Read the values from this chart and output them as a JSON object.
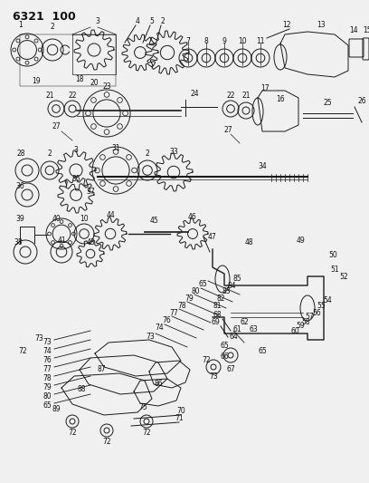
{
  "title": "6321 100",
  "bg_color": "#f0f0f0",
  "line_color": "#1a1a1a",
  "text_color": "#111111",
  "title_fontsize": 9,
  "label_fontsize": 5.5,
  "figsize": [
    4.08,
    5.33
  ],
  "dpi": 100,
  "xlim": [
    0,
    408
  ],
  "ylim": [
    0,
    533
  ]
}
